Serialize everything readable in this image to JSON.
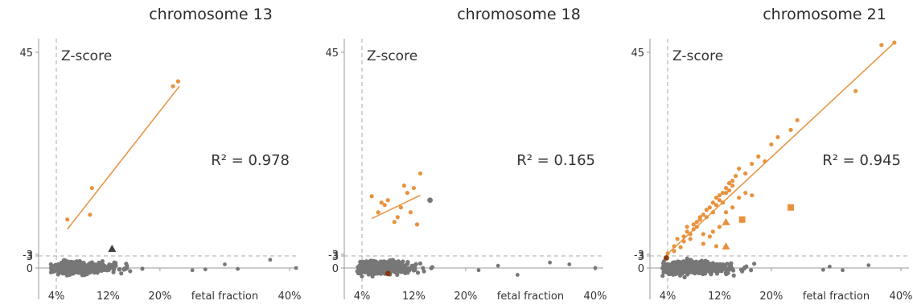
{
  "colors": {
    "orange": "#E8923E",
    "gray": "#777777",
    "dark_gray": "#3f3f3f",
    "brown": "#8B3A10",
    "axis": "#999999",
    "dashed": "#aaaaaa"
  },
  "chart_data": [
    {
      "type": "scatter",
      "title": "chromosome 13",
      "ylabel": "Z-score",
      "xlabel": "fetal fraction",
      "x_tick_labels": [
        "4%",
        "12%",
        "20%",
        "40%"
      ],
      "y_tick_labels": [
        "45",
        "3",
        "0",
        "-3"
      ],
      "threshold_x": "4%",
      "threshold_y": 3,
      "r2_label": "R² = 0.978",
      "series": [
        {
          "marker": "circle",
          "color": "orange",
          "points": [
            [
              5.7,
              10.5
            ],
            [
              9.2,
              11.5
            ],
            [
              9.5,
              17
            ],
            [
              22,
              38
            ],
            [
              22.8,
              39
            ]
          ],
          "fit": [
            [
              5.7,
              8.5
            ],
            [
              23,
              38
            ]
          ]
        },
        {
          "marker": "triangle",
          "color": "dark_gray",
          "points": [
            [
              12.6,
              4.5
            ]
          ]
        }
      ],
      "background_cloud": {
        "x_range": [
          4,
          24
        ],
        "y_range": [
          -3,
          3
        ],
        "outliers": [
          [
            25,
            0.5
          ],
          [
            27,
            0.3
          ],
          [
            30,
            -0.8
          ],
          [
            32,
            0.2
          ],
          [
            37,
            -1.8
          ],
          [
            41,
            0
          ]
        ]
      }
    },
    {
      "type": "scatter",
      "title": "chromosome 18",
      "ylabel": "Z-score",
      "xlabel": "fetal fraction",
      "x_tick_labels": [
        "4%",
        "12%",
        "20%",
        "40%"
      ],
      "y_tick_labels": [
        "45",
        "3",
        "0",
        "-3"
      ],
      "threshold_x": "4%",
      "threshold_y": 3,
      "r2_label": "R² = 0.165",
      "series": [
        {
          "marker": "circle",
          "color": "orange",
          "points": [
            [
              5.5,
              15.3
            ],
            [
              6.5,
              12
            ],
            [
              7,
              14
            ],
            [
              7.5,
              13.5
            ],
            [
              8,
              14.5
            ],
            [
              9,
              10
            ],
            [
              9.5,
              11
            ],
            [
              10,
              13
            ],
            [
              10.5,
              17.5
            ],
            [
              11,
              16
            ],
            [
              11.5,
              12
            ],
            [
              12,
              17
            ],
            [
              12.5,
              9.5
            ],
            [
              13,
              20
            ]
          ],
          "fit": [
            [
              5.5,
              10.7
            ],
            [
              13,
              15.5
            ]
          ]
        },
        {
          "marker": "circle",
          "color": "gray",
          "points": [
            [
              14.5,
              14.5
            ]
          ]
        },
        {
          "marker": "circle",
          "color": "brown",
          "points": [
            [
              8,
              1.2
            ]
          ]
        }
      ],
      "background_cloud": {
        "x_range": [
          4,
          20
        ],
        "y_range": [
          -3,
          3
        ],
        "outliers": [
          [
            22,
            0.5
          ],
          [
            25,
            -0.5
          ],
          [
            28,
            1.5
          ],
          [
            33,
            -1.2
          ],
          [
            36,
            -0.8
          ],
          [
            40,
            0
          ]
        ]
      }
    },
    {
      "type": "scatter",
      "title": "chromosome 21",
      "ylabel": "Z-score",
      "xlabel": "fetal fraction",
      "x_tick_labels": [
        "4%",
        "12%",
        "20%",
        "40%"
      ],
      "y_tick_labels": [
        "45",
        "3",
        "0",
        "-3"
      ],
      "threshold_x": "4%",
      "threshold_y": 3,
      "r2_label": "R² = 0.945",
      "series": [
        {
          "marker": "circle",
          "color": "orange",
          "points": [
            [
              4,
              3.5
            ],
            [
              5,
              5
            ],
            [
              5.5,
              6.5
            ],
            [
              6,
              4.8
            ],
            [
              6.5,
              7
            ],
            [
              7,
              8
            ],
            [
              7.5,
              7.5
            ],
            [
              8,
              9.5
            ],
            [
              8.5,
              10
            ],
            [
              9,
              11
            ],
            [
              9.5,
              11.5
            ],
            [
              10,
              12.5
            ],
            [
              10.5,
              13
            ],
            [
              11,
              14
            ],
            [
              11.5,
              15
            ],
            [
              12,
              15.5
            ],
            [
              12.5,
              16
            ],
            [
              13,
              17
            ],
            [
              13.5,
              18
            ],
            [
              14,
              18.5
            ],
            [
              14.5,
              19.5
            ],
            [
              15,
              21
            ],
            [
              16,
              20
            ],
            [
              17,
              22
            ],
            [
              18,
              23.5
            ],
            [
              19,
              22.5
            ],
            [
              20,
              26
            ],
            [
              21,
              27.5
            ],
            [
              23,
              29
            ],
            [
              24,
              31
            ],
            [
              33,
              37
            ],
            [
              37,
              46.5
            ],
            [
              39,
              47
            ],
            [
              7,
              9
            ],
            [
              8,
              8.5
            ],
            [
              9,
              10.5
            ],
            [
              10,
              11
            ],
            [
              11,
              12
            ],
            [
              11.5,
              13.5
            ],
            [
              12,
              14.5
            ],
            [
              12.5,
              14
            ],
            [
              13,
              16
            ],
            [
              13.5,
              16.5
            ],
            [
              14,
              17.5
            ],
            [
              6.5,
              6
            ],
            [
              7.5,
              6.5
            ],
            [
              8.5,
              9
            ],
            [
              9.5,
              7.5
            ],
            [
              10.5,
              7
            ],
            [
              11,
              8
            ],
            [
              12,
              9
            ],
            [
              13,
              12
            ],
            [
              14,
              13
            ],
            [
              15,
              15
            ],
            [
              16,
              16
            ],
            [
              17,
              15.5
            ],
            [
              5,
              4
            ],
            [
              9.5,
              5.5
            ],
            [
              11.5,
              5
            ]
          ],
          "fit": [
            [
              3.8,
              3.2
            ],
            [
              39,
              47
            ]
          ]
        },
        {
          "marker": "square",
          "color": "orange",
          "points": [
            [
              15.5,
              10.5
            ],
            [
              23,
              13
            ]
          ]
        },
        {
          "marker": "triangle",
          "color": "orange",
          "points": [
            [
              13,
              10
            ],
            [
              13,
              5
            ]
          ]
        },
        {
          "marker": "circle",
          "color": "brown",
          "points": [
            [
              3.8,
              -2.2
            ]
          ]
        }
      ],
      "background_cloud": {
        "x_range": [
          4,
          27
        ],
        "y_range": [
          -3,
          3
        ],
        "outliers": [
          [
            28,
            0.4
          ],
          [
            29,
            -0.3
          ],
          [
            31,
            0.5
          ],
          [
            35,
            -0.6
          ]
        ]
      }
    }
  ]
}
